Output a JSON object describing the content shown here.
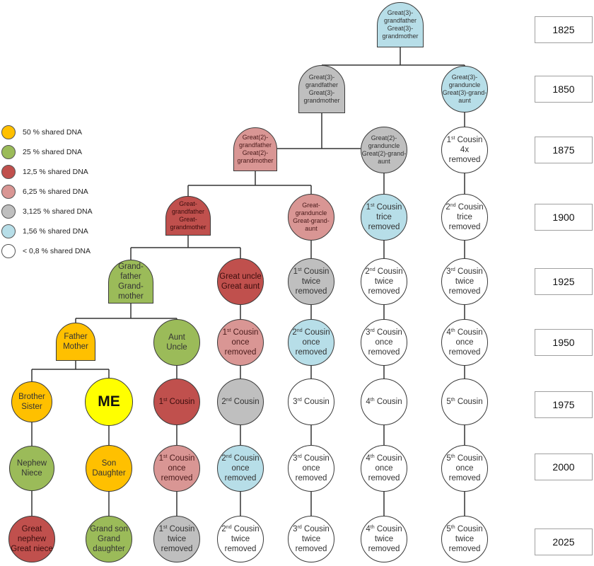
{
  "colors": {
    "p50": "#FFC000",
    "p25": "#9BBB59",
    "p12": "#C0504D",
    "p6": "#D99694",
    "p3": "#BFBFBF",
    "p1": "#B7DEE8",
    "p0": "#FFFFFF",
    "me": "#FFFF00"
  },
  "legend": [
    {
      "key": "p50",
      "label": "50 % shared DNA"
    },
    {
      "key": "p25",
      "label": "25 % shared DNA"
    },
    {
      "key": "p12",
      "label": "12,5 % shared DNA"
    },
    {
      "key": "p6",
      "label": "6,25 % shared DNA"
    },
    {
      "key": "p3",
      "label": "3,125 % shared DNA"
    },
    {
      "key": "p1",
      "label": "1,56 % shared DNA"
    },
    {
      "key": "p0",
      "label": "< 0,8 % shared DNA"
    }
  ],
  "years": [
    "1825",
    "1850",
    "1875",
    "1900",
    "1925",
    "1950",
    "1975",
    "2000",
    "2025"
  ],
  "nodes": [
    {
      "id": "g3-top",
      "shape": "tomb",
      "color": "p1",
      "small": true,
      "lines": [
        [
          "Great(3)-"
        ],
        [
          "grandfather"
        ],
        [
          "Great(3)-"
        ],
        [
          "grandmother"
        ]
      ]
    },
    {
      "id": "g3-left",
      "shape": "tomb",
      "color": "p3",
      "small": true,
      "lines": [
        [
          "Great(3)-"
        ],
        [
          "grandfather"
        ],
        [
          "Great(3)-"
        ],
        [
          "grandmother"
        ]
      ]
    },
    {
      "id": "g3-uncle",
      "shape": "circle",
      "color": "p1",
      "small": true,
      "lines": [
        [
          "Great(3)-"
        ],
        [
          "granduncle"
        ],
        [
          "Great(3)-grand-"
        ],
        [
          "aunt"
        ]
      ]
    },
    {
      "id": "g2",
      "shape": "tomb",
      "color": "p6",
      "small": true,
      "lines": [
        [
          "Great(2)-"
        ],
        [
          "grandfather"
        ],
        [
          "Great(2)-"
        ],
        [
          "grandmother"
        ]
      ]
    },
    {
      "id": "g2-uncle",
      "shape": "circle",
      "color": "p3",
      "small": true,
      "lines": [
        [
          "Great(2)-"
        ],
        [
          "granduncle"
        ],
        [
          "Great(2)-grand-"
        ],
        [
          "aunt"
        ]
      ]
    },
    {
      "id": "c1-4x",
      "shape": "circle",
      "color": "p0",
      "lines": [
        [
          "1",
          {
            "sup": "st"
          },
          " Cousin 4x"
        ],
        [
          "removed"
        ]
      ]
    },
    {
      "id": "gg",
      "shape": "tomb",
      "color": "p12",
      "small": true,
      "lines": [
        [
          "Great-"
        ],
        [
          "grandfather"
        ],
        [
          "Great-"
        ],
        [
          "grandmother"
        ]
      ]
    },
    {
      "id": "gg-uncle",
      "shape": "circle",
      "color": "p6",
      "small": true,
      "lines": [
        [
          "Great-"
        ],
        [
          "granduncle"
        ],
        [
          "Great-grand-"
        ],
        [
          "aunt"
        ]
      ]
    },
    {
      "id": "c1-3x",
      "shape": "circle",
      "color": "p1",
      "lines": [
        [
          "1",
          {
            "sup": "st"
          },
          " Cousin"
        ],
        [
          "trice"
        ],
        [
          "removed"
        ]
      ]
    },
    {
      "id": "c2-3x",
      "shape": "circle",
      "color": "p0",
      "lines": [
        [
          "2",
          {
            "sup": "nd"
          },
          " Cousin"
        ],
        [
          "trice"
        ],
        [
          "removed"
        ]
      ]
    },
    {
      "id": "gp",
      "shape": "tomb",
      "color": "p25",
      "lines": [
        [
          "Grand-"
        ],
        [
          "father"
        ],
        [
          "Grand-"
        ],
        [
          "mother"
        ]
      ]
    },
    {
      "id": "great-uncle",
      "shape": "circle",
      "color": "p12",
      "lines": [
        [
          "Great uncle"
        ],
        [
          "Great aunt"
        ]
      ]
    },
    {
      "id": "c1-2x-a",
      "shape": "circle",
      "color": "p3",
      "lines": [
        [
          "1",
          {
            "sup": "st"
          },
          " Cousin"
        ],
        [
          "twice"
        ],
        [
          "removed"
        ]
      ]
    },
    {
      "id": "c2-2x-a",
      "shape": "circle",
      "color": "p0",
      "lines": [
        [
          "2",
          {
            "sup": "nd"
          },
          " Cousin"
        ],
        [
          "twice"
        ],
        [
          "removed"
        ]
      ]
    },
    {
      "id": "c3-2x-a",
      "shape": "circle",
      "color": "p0",
      "lines": [
        [
          "3",
          {
            "sup": "rd"
          },
          " Cousin"
        ],
        [
          "twice"
        ],
        [
          "removed"
        ]
      ]
    },
    {
      "id": "parents",
      "shape": "tomb",
      "color": "p50",
      "lines": [
        [
          "Father"
        ],
        [
          "Mother"
        ]
      ]
    },
    {
      "id": "aunt",
      "shape": "circle",
      "color": "p25",
      "lines": [
        [
          "Aunt"
        ],
        [
          "Uncle"
        ]
      ]
    },
    {
      "id": "c1-1x-a",
      "shape": "circle",
      "color": "p6",
      "lines": [
        [
          "1",
          {
            "sup": "st"
          },
          " Cousin"
        ],
        [
          "once"
        ],
        [
          "removed"
        ]
      ]
    },
    {
      "id": "c2-1x-a",
      "shape": "circle",
      "color": "p1",
      "lines": [
        [
          "2",
          {
            "sup": "nd"
          },
          " Cousin"
        ],
        [
          "once"
        ],
        [
          "removed"
        ]
      ]
    },
    {
      "id": "c3-1x-a",
      "shape": "circle",
      "color": "p0",
      "lines": [
        [
          "3",
          {
            "sup": "rd"
          },
          " Cousin"
        ],
        [
          "once"
        ],
        [
          "removed"
        ]
      ]
    },
    {
      "id": "c4-1x-a",
      "shape": "circle",
      "color": "p0",
      "lines": [
        [
          "4",
          {
            "sup": "th"
          },
          " Cousin"
        ],
        [
          "once"
        ],
        [
          "removed"
        ]
      ]
    },
    {
      "id": "sibling",
      "shape": "circle",
      "color": "p50",
      "lines": [
        [
          "Brother"
        ],
        [
          "Sister"
        ]
      ]
    },
    {
      "id": "me",
      "shape": "circle",
      "color": "me",
      "me": true,
      "lines": [
        [
          "ME"
        ]
      ]
    },
    {
      "id": "c1",
      "shape": "circle",
      "color": "p12",
      "lines": [
        [
          "1",
          {
            "sup": "st"
          },
          " Cousin"
        ]
      ]
    },
    {
      "id": "c2",
      "shape": "circle",
      "color": "p3",
      "lines": [
        [
          "2",
          {
            "sup": "nd"
          },
          " Cousin"
        ]
      ]
    },
    {
      "id": "c3",
      "shape": "circle",
      "color": "p0",
      "lines": [
        [
          "3",
          {
            "sup": "rd"
          },
          " Cousin"
        ]
      ]
    },
    {
      "id": "c4",
      "shape": "circle",
      "color": "p0",
      "lines": [
        [
          "4",
          {
            "sup": "th"
          },
          " Cousin"
        ]
      ]
    },
    {
      "id": "c5",
      "shape": "circle",
      "color": "p0",
      "lines": [
        [
          "5",
          {
            "sup": "th"
          },
          " Cousin"
        ]
      ]
    },
    {
      "id": "nephew",
      "shape": "circle",
      "color": "p25",
      "lines": [
        [
          "Nephew"
        ],
        [
          "Niece"
        ]
      ]
    },
    {
      "id": "child",
      "shape": "circle",
      "color": "p50",
      "lines": [
        [
          "Son"
        ],
        [
          "Daughter"
        ]
      ]
    },
    {
      "id": "c1-1x-b",
      "shape": "circle",
      "color": "p6",
      "lines": [
        [
          "1",
          {
            "sup": "st"
          },
          " Cousin"
        ],
        [
          "once"
        ],
        [
          "removed"
        ]
      ]
    },
    {
      "id": "c2-1x-b",
      "shape": "circle",
      "color": "p1",
      "lines": [
        [
          "2",
          {
            "sup": "nd"
          },
          " Cousin"
        ],
        [
          "once"
        ],
        [
          "removed"
        ]
      ]
    },
    {
      "id": "c3-1x-b",
      "shape": "circle",
      "color": "p0",
      "lines": [
        [
          "3",
          {
            "sup": "rd"
          },
          " Cousin"
        ],
        [
          "once"
        ],
        [
          "removed"
        ]
      ]
    },
    {
      "id": "c4-1x-b",
      "shape": "circle",
      "color": "p0",
      "lines": [
        [
          "4",
          {
            "sup": "th"
          },
          " Cousin"
        ],
        [
          "once"
        ],
        [
          "removed"
        ]
      ]
    },
    {
      "id": "c5-1x",
      "shape": "circle",
      "color": "p0",
      "lines": [
        [
          "5",
          {
            "sup": "th"
          },
          " Cousin"
        ],
        [
          "once"
        ],
        [
          "removed"
        ]
      ]
    },
    {
      "id": "great-nephew",
      "shape": "circle",
      "color": "p12",
      "lines": [
        [
          "Great"
        ],
        [
          "nephew"
        ],
        [
          "Great niece"
        ]
      ]
    },
    {
      "id": "grandchild",
      "shape": "circle",
      "color": "p25",
      "lines": [
        [
          "Grand son"
        ],
        [
          "Grand"
        ],
        [
          "daughter"
        ]
      ]
    },
    {
      "id": "c1-2x-b",
      "shape": "circle",
      "color": "p3",
      "lines": [
        [
          "1",
          {
            "sup": "st"
          },
          " Cousin"
        ],
        [
          "twice"
        ],
        [
          "removed"
        ]
      ]
    },
    {
      "id": "c2-2x-b",
      "shape": "circle",
      "color": "p0",
      "lines": [
        [
          "2",
          {
            "sup": "nd"
          },
          " Cousin"
        ],
        [
          "twice"
        ],
        [
          "removed"
        ]
      ]
    },
    {
      "id": "c3-2x-b",
      "shape": "circle",
      "color": "p0",
      "lines": [
        [
          "3",
          {
            "sup": "rd"
          },
          " Cousin"
        ],
        [
          "twice"
        ],
        [
          "removed"
        ]
      ]
    },
    {
      "id": "c4-2x",
      "shape": "circle",
      "color": "p0",
      "lines": [
        [
          "4",
          {
            "sup": "th"
          },
          " Cousin"
        ],
        [
          "twice"
        ],
        [
          "removed"
        ]
      ]
    },
    {
      "id": "c5-2x",
      "shape": "circle",
      "color": "p0",
      "lines": [
        [
          "5",
          {
            "sup": "th"
          },
          " Cousin"
        ],
        [
          "twice"
        ],
        [
          "removed"
        ]
      ]
    }
  ]
}
